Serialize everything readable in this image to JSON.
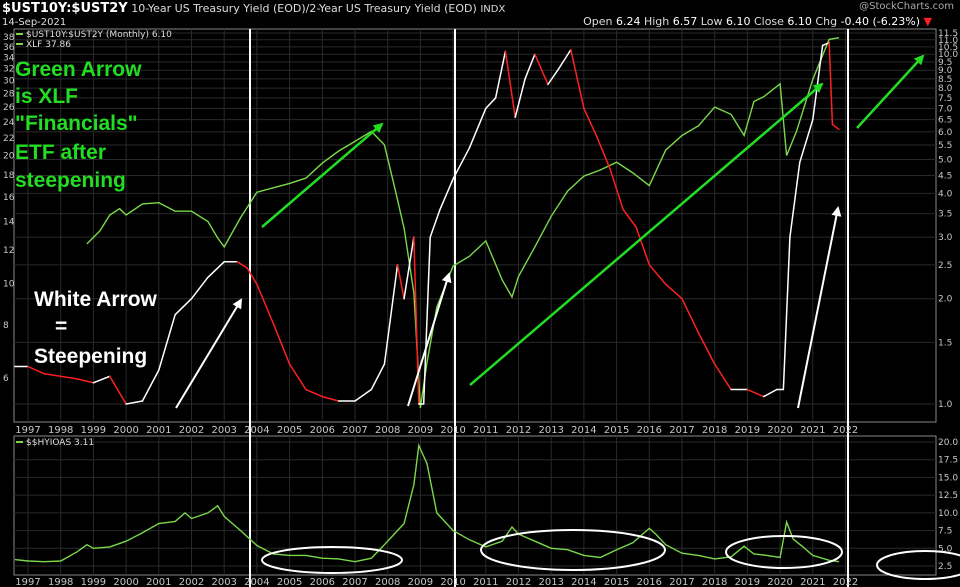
{
  "header": {
    "symbol": "$UST10Y:$UST2Y",
    "description": "10-Year US Treasury Yield (EOD)/2-Year US Treasury Yield (EOD)",
    "exchange": "INDX",
    "date": "14-Sep-2021",
    "brand": "@StockCharts.com",
    "ohlc": {
      "open_label": "Open",
      "open": "6.24",
      "high_label": "High",
      "high": "6.57",
      "low_label": "Low",
      "low": "6.10",
      "close_label": "Close",
      "close": "6.10",
      "chg_label": "Chg",
      "chg": "-0.40 (-6.23%)",
      "down_arrow": "▼"
    }
  },
  "annotations": {
    "green_text": [
      "Green Arrow",
      "is XLF",
      "\"Financials\"",
      "ETF after",
      "steepening"
    ],
    "white_text": [
      "White Arrow",
      "=",
      "Steepening"
    ]
  },
  "colors": {
    "ratio_up": "#ffffff",
    "ratio_down": "#ff2020",
    "xlf": "#7ad84a",
    "hyioas": "#7ad84a",
    "green_arrow": "#22dd22",
    "white_arrow": "#ffffff",
    "axis_text": "#c8c8c8",
    "grid": "#2a2a2a"
  },
  "chart_data": [
    {
      "type": "line",
      "panel": "upper",
      "legend": [
        {
          "name": "$UST10Y:$UST2Y (Monthly) 6.10"
        },
        {
          "name": "XLF 37.86"
        }
      ],
      "y_left_ticks": [
        6,
        8,
        10,
        12,
        14,
        16,
        18,
        20,
        22,
        24,
        26,
        28,
        30,
        32,
        34,
        36,
        38
      ],
      "y_right_ticks": [
        "1.0",
        "1.5",
        "2.0",
        "2.5",
        "3.0",
        "3.5",
        "4.0",
        "4.5",
        "5.0",
        "5.5",
        "6.0",
        "6.5",
        "7.0",
        "7.5",
        "8.0",
        "8.5",
        "9.0",
        "9.5",
        "10.0",
        "10.5",
        "11.0",
        "11.5"
      ],
      "x_ticks": [
        "1997",
        "1998",
        "1999",
        "2000",
        "2001",
        "2002",
        "2003",
        "2004",
        "2005",
        "2006",
        "2007",
        "2008",
        "2009",
        "2010",
        "2011",
        "2012",
        "2013",
        "2014",
        "2015",
        "2016",
        "2017",
        "2018",
        "2019",
        "2020",
        "2021",
        "2022"
      ],
      "ratio_series": {
        "name": "$UST10Y:$UST2Y",
        "x": [
          1996.6,
          1997.0,
          1997.5,
          1998.0,
          1998.5,
          1999.0,
          1999.5,
          2000.0,
          2000.5,
          2001.0,
          2001.5,
          2002.0,
          2002.5,
          2003.0,
          2003.4,
          2003.7,
          2004.0,
          2004.5,
          2005.0,
          2005.5,
          2006.0,
          2006.5,
          2007.0,
          2007.5,
          2007.9,
          2008.3,
          2008.5,
          2008.8,
          2008.95,
          2009.1,
          2009.3,
          2009.6,
          2010.0,
          2010.5,
          2011.0,
          2011.3,
          2011.6,
          2011.9,
          2012.2,
          2012.5,
          2012.9,
          2013.2,
          2013.6,
          2014.0,
          2014.4,
          2014.8,
          2015.2,
          2015.6,
          2016.0,
          2016.5,
          2017.0,
          2017.5,
          2018.0,
          2018.5,
          2019.0,
          2019.5,
          2019.9,
          2020.1,
          2020.3,
          2020.6,
          2021.0,
          2021.3,
          2021.5,
          2021.6,
          2021.8
        ],
        "values": [
          1.28,
          1.28,
          1.22,
          1.2,
          1.18,
          1.15,
          1.2,
          1.0,
          1.02,
          1.25,
          1.8,
          2.0,
          2.3,
          2.55,
          2.55,
          2.45,
          2.2,
          1.7,
          1.3,
          1.1,
          1.05,
          1.02,
          1.02,
          1.1,
          1.3,
          2.5,
          2.0,
          3.0,
          1.0,
          1.0,
          3.0,
          3.6,
          4.4,
          5.4,
          7.0,
          7.5,
          10.2,
          6.6,
          8.5,
          10.0,
          8.2,
          9.0,
          10.3,
          7.0,
          5.8,
          4.7,
          3.6,
          3.2,
          2.5,
          2.2,
          2.0,
          1.6,
          1.3,
          1.1,
          1.1,
          1.05,
          1.1,
          1.1,
          3.0,
          4.9,
          6.5,
          10.6,
          10.8,
          6.3,
          6.1
        ]
      },
      "xlf_series": {
        "name": "XLF",
        "x": [
          1998.8,
          1999.2,
          1999.5,
          1999.8,
          2000.0,
          2000.5,
          2001.0,
          2001.5,
          2002.0,
          2002.5,
          2002.8,
          2003.0,
          2003.5,
          2004.0,
          2004.5,
          2005.0,
          2005.5,
          2006.0,
          2006.5,
          2007.0,
          2007.5,
          2007.9,
          2008.2,
          2008.5,
          2008.8,
          2009.0,
          2009.2,
          2009.5,
          2010.0,
          2010.5,
          2011.0,
          2011.5,
          2011.8,
          2012.0,
          2012.5,
          2013.0,
          2013.5,
          2014.0,
          2014.5,
          2015.0,
          2015.5,
          2016.0,
          2016.5,
          2017.0,
          2017.5,
          2018.0,
          2018.5,
          2018.9,
          2019.2,
          2019.5,
          2020.0,
          2020.2,
          2020.5,
          2021.0,
          2021.5,
          2021.8
        ],
        "values": [
          12.4,
          13.3,
          14.5,
          15.0,
          14.5,
          15.4,
          15.5,
          14.8,
          14.8,
          14.0,
          12.8,
          12.2,
          14.3,
          16.4,
          16.8,
          17.2,
          17.7,
          19.2,
          20.5,
          21.6,
          22.8,
          21.2,
          17.0,
          13.5,
          9.5,
          5.1,
          6.5,
          8.8,
          11.0,
          11.6,
          12.6,
          10.2,
          9.3,
          10.4,
          12.2,
          14.4,
          16.5,
          17.9,
          18.5,
          19.3,
          18.2,
          17.0,
          20.6,
          22.3,
          23.5,
          26.0,
          25.0,
          22.3,
          26.8,
          27.5,
          29.5,
          20.0,
          22.8,
          30.2,
          37.5,
          37.86
        ]
      }
    },
    {
      "type": "line",
      "panel": "lower",
      "legend": [
        {
          "name": "$$HYIOAS 3.11"
        }
      ],
      "y_ticks": [
        "2.5",
        "5.0",
        "7.5",
        "10.0",
        "12.5",
        "15.0",
        "17.5",
        "20.0"
      ],
      "x_ticks": [
        "1997",
        "1998",
        "1999",
        "2000",
        "2001",
        "2002",
        "2003",
        "2004",
        "2005",
        "2006",
        "2007",
        "2008",
        "2009",
        "2010",
        "2011",
        "2012",
        "2013",
        "2014",
        "2015",
        "2016",
        "2017",
        "2018",
        "2019",
        "2020",
        "2021",
        "2022"
      ],
      "ylim": [
        2.0,
        20.5
      ],
      "series": [
        {
          "name": "$$HYIOAS",
          "x": [
            1996.6,
            1997.0,
            1997.5,
            1998.0,
            1998.5,
            1998.8,
            1999.0,
            1999.5,
            2000.0,
            2000.5,
            2001.0,
            2001.5,
            2001.8,
            2002.0,
            2002.5,
            2002.8,
            2003.0,
            2003.5,
            2004.0,
            2004.5,
            2005.0,
            2005.5,
            2006.0,
            2006.5,
            2007.0,
            2007.5,
            2007.9,
            2008.2,
            2008.5,
            2008.8,
            2008.95,
            2009.2,
            2009.5,
            2010.0,
            2010.5,
            2011.0,
            2011.5,
            2011.8,
            2012.0,
            2012.5,
            2013.0,
            2013.5,
            2014.0,
            2014.5,
            2015.0,
            2015.5,
            2016.0,
            2016.2,
            2016.5,
            2017.0,
            2017.5,
            2018.0,
            2018.5,
            2018.9,
            2019.2,
            2019.6,
            2020.0,
            2020.2,
            2020.4,
            2020.7,
            2021.0,
            2021.5,
            2021.8
          ],
          "values": [
            3.4,
            3.2,
            3.1,
            3.2,
            4.5,
            5.5,
            5.0,
            5.2,
            6.0,
            7.2,
            8.5,
            8.8,
            10.0,
            9.2,
            10.0,
            11.0,
            9.5,
            7.5,
            5.4,
            4.2,
            4.0,
            4.0,
            3.6,
            3.5,
            3.1,
            3.6,
            5.5,
            7.0,
            8.5,
            14.0,
            19.5,
            17.0,
            10.0,
            7.5,
            6.2,
            5.2,
            6.0,
            8.0,
            7.0,
            6.0,
            5.0,
            4.8,
            4.0,
            3.7,
            4.8,
            5.8,
            7.8,
            7.0,
            5.5,
            4.3,
            4.0,
            3.5,
            3.8,
            5.3,
            4.2,
            4.0,
            3.7,
            8.7,
            6.3,
            5.2,
            4.0,
            3.3,
            3.11
          ]
        }
      ]
    }
  ]
}
